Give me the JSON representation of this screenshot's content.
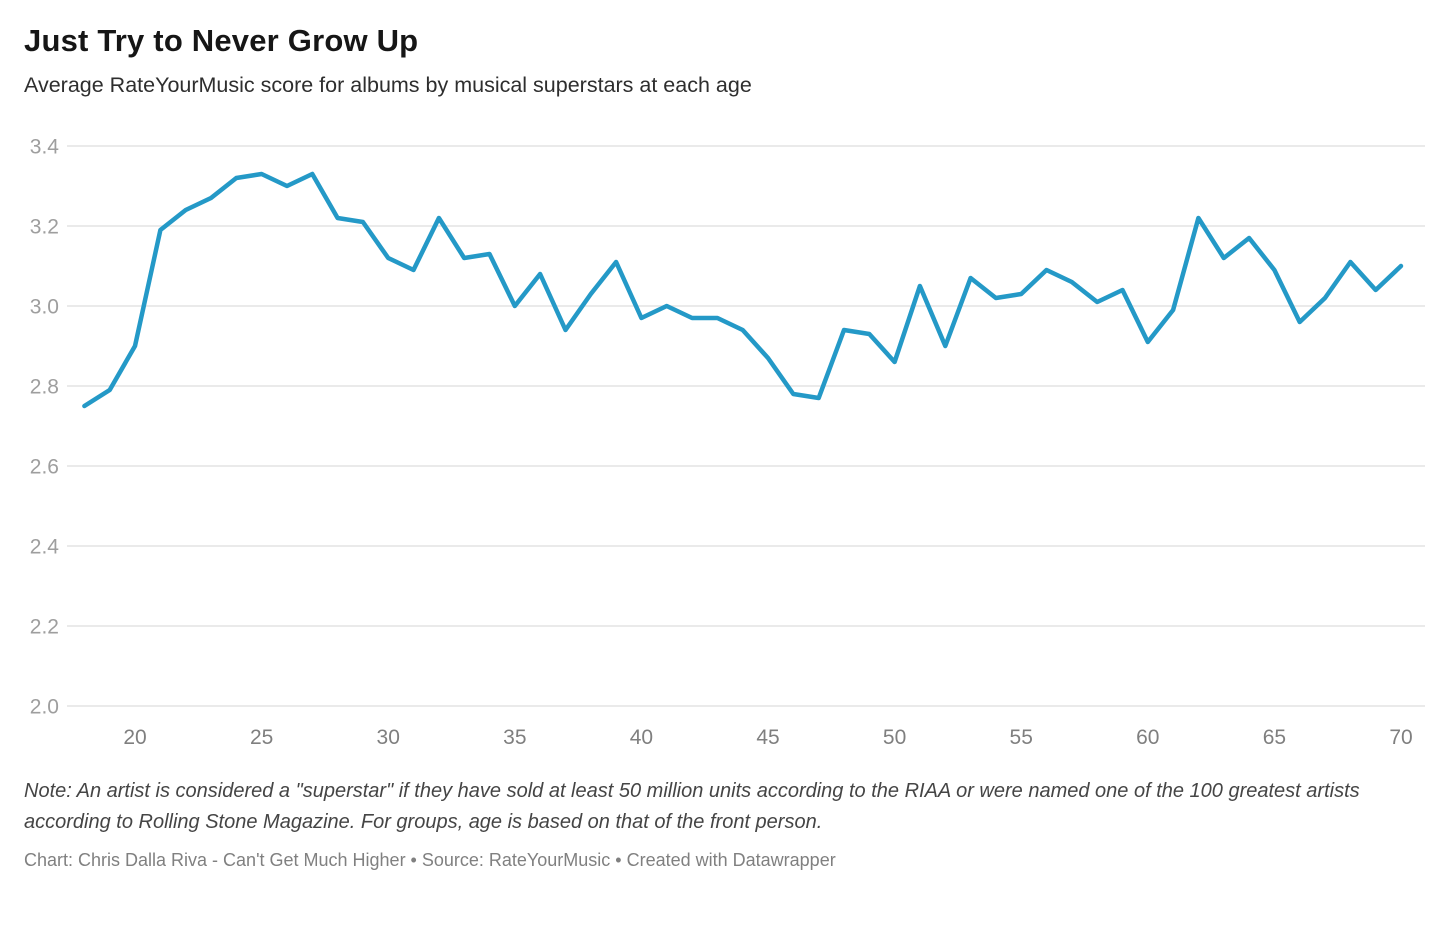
{
  "header": {
    "title": "Just Try to Never Grow Up",
    "subtitle": "Average RateYourMusic score for albums by musical superstars at each age"
  },
  "footer": {
    "note": "Note: An artist is considered a \"superstar\" if they have sold at least 50 million units according to the RIAA or were named one of the 100 greatest artists according to Rolling Stone Magazine. For groups, age is based on that of the front person.",
    "byline": "Chart: Chris Dalla Riva - Can't Get Much Higher • Source: RateYourMusic • Created with Datawrapper"
  },
  "chart_data": {
    "type": "line",
    "title": "Just Try to Never Grow Up",
    "subtitle": "Average RateYourMusic score for albums by musical superstars at each age",
    "series_name": "Average RateYourMusic score",
    "x": [
      18,
      19,
      20,
      21,
      22,
      23,
      24,
      25,
      26,
      27,
      28,
      29,
      30,
      31,
      32,
      33,
      34,
      35,
      36,
      37,
      38,
      39,
      40,
      41,
      42,
      43,
      44,
      45,
      46,
      47,
      48,
      49,
      50,
      51,
      52,
      53,
      54,
      55,
      56,
      57,
      58,
      59,
      60,
      61,
      62,
      63,
      64,
      65,
      66,
      67,
      68,
      69,
      70
    ],
    "values": [
      2.75,
      2.79,
      2.9,
      3.19,
      3.24,
      3.27,
      3.32,
      3.33,
      3.3,
      3.33,
      3.22,
      3.21,
      3.12,
      3.09,
      3.22,
      3.12,
      3.13,
      3.0,
      3.08,
      2.94,
      3.03,
      3.11,
      2.97,
      3.0,
      2.97,
      2.97,
      2.94,
      2.87,
      2.78,
      2.77,
      2.94,
      2.93,
      2.86,
      3.05,
      2.9,
      3.07,
      3.02,
      3.03,
      3.09,
      3.06,
      3.01,
      3.04,
      2.91,
      2.99,
      3.22,
      3.12,
      3.17,
      3.09,
      2.96,
      3.02,
      3.11,
      3.04,
      3.1
    ],
    "xlabel": "",
    "ylabel": "",
    "xlim": [
      18,
      70
    ],
    "ylim": [
      2.0,
      3.4
    ],
    "xticks": [
      20,
      25,
      30,
      35,
      40,
      45,
      50,
      55,
      60,
      65,
      70
    ],
    "xtick_labels": [
      "20",
      "25",
      "30",
      "35",
      "40",
      "45",
      "50",
      "55",
      "60",
      "65",
      "70"
    ],
    "yticks": [
      2.0,
      2.2,
      2.4,
      2.6,
      2.8,
      3.0,
      3.2,
      3.4
    ],
    "ytick_labels": [
      "2.0",
      "2.2",
      "2.4",
      "2.6",
      "2.8",
      "3.0",
      "3.2",
      "3.4"
    ],
    "grid": "horizontal",
    "legend": "none",
    "line_color": "#2499c7",
    "grid_color": "#e4e4e4",
    "x_label_color": "#7f7f7f",
    "y_label_color": "#9e9e9e"
  }
}
